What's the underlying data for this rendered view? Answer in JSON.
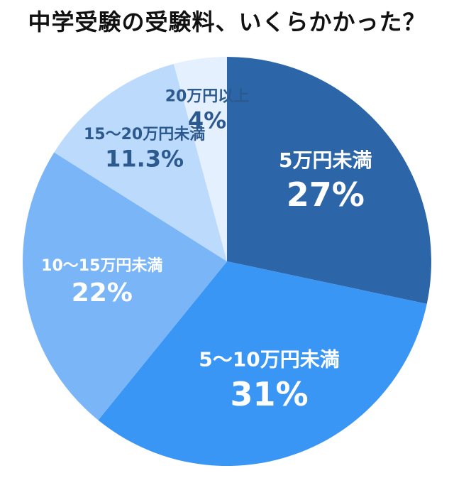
{
  "chart_data": {
    "type": "pie",
    "title": "中学受験の受験料、いくらかかった？",
    "categories": [
      "5万円未満",
      "5〜10万円未満",
      "10〜15万円未満",
      "15〜20万円未満",
      "20万円以上"
    ],
    "values": [
      27,
      31,
      22,
      11.3,
      4
    ],
    "value_labels": [
      "27%",
      "31%",
      "22%",
      "11.3%",
      "4%"
    ],
    "colors": [
      "#2d66a8",
      "#3a96f5",
      "#7ab6f7",
      "#bcdafc",
      "#e4f0fe"
    ],
    "label_colors": [
      "#ffffff",
      "#ffffff",
      "#ffffff",
      "#2d5a8e",
      "#2d5a8e"
    ],
    "start_angle_deg": 0,
    "direction": "clockwise"
  }
}
